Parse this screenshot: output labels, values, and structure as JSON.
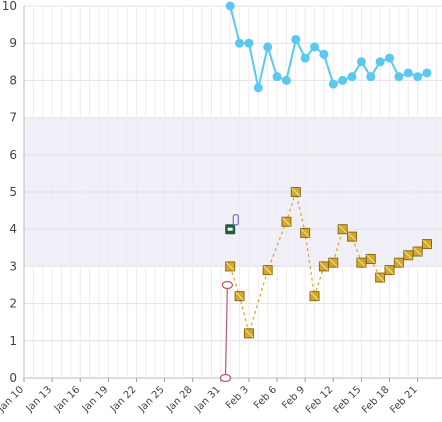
{
  "chart_data": {
    "type": "line",
    "title": "",
    "xlabel": "",
    "ylabel": "",
    "ylim": [
      0,
      10
    ],
    "y_ticks": [
      "0",
      "1",
      "2",
      "3",
      "4",
      "5",
      "6",
      "7",
      "8",
      "9",
      "10"
    ],
    "x_ticks": [
      "Jan 10",
      "Jan 13",
      "Jan 16",
      "Jan 19",
      "Jan 22",
      "Jan 25",
      "Jan 28",
      "Jan 31",
      "Feb 3",
      "Feb 6",
      "Feb 9",
      "Feb 12",
      "Feb 15",
      "Feb 18",
      "Feb 21"
    ],
    "grid": true,
    "legend": "none",
    "bands": [
      {
        "from": 3,
        "to": 7,
        "color": "#f1eff8"
      }
    ],
    "series": [
      {
        "style": "dots-line",
        "color": "#5bc8f0",
        "x": [
          32,
          33,
          34,
          35,
          36,
          37,
          38,
          39,
          40,
          41,
          42,
          43,
          44,
          45,
          46,
          47,
          48,
          49,
          50,
          51,
          52,
          53
        ],
        "y": [
          10,
          9.0,
          9.0,
          7.8,
          8.9,
          8.1,
          8.0,
          9.1,
          8.6,
          8.9,
          8.7,
          7.9,
          8.0,
          8.1,
          8.5,
          8.1,
          8.5,
          8.6,
          8.1,
          8.2,
          8.1,
          8.2
        ]
      },
      {
        "style": "squares-dashed",
        "color": "#d4a82a",
        "x": [
          32,
          33,
          34,
          36,
          38,
          39,
          40,
          41,
          42,
          43,
          44,
          45,
          46,
          47,
          48,
          49,
          50,
          51,
          52,
          53
        ],
        "y": [
          3.0,
          2.2,
          1.2,
          2.9,
          4.2,
          5.0,
          3.9,
          2.2,
          3.0,
          3.1,
          4.0,
          3.8,
          3.1,
          3.2,
          2.7,
          2.9,
          3.1,
          3.3,
          3.4,
          3.6
        ]
      },
      {
        "style": "open-ovals-line",
        "color": "#b85a6a",
        "x": [
          31.5,
          31.7
        ],
        "y": [
          0,
          2.5
        ]
      }
    ],
    "markers": [
      {
        "type": "dark-square",
        "x": 32,
        "y": 4.0,
        "color": "#1f5f3e"
      },
      {
        "type": "small-icon",
        "x": 32.6,
        "y": 4.2,
        "color": "#7a7fc8"
      }
    ]
  }
}
